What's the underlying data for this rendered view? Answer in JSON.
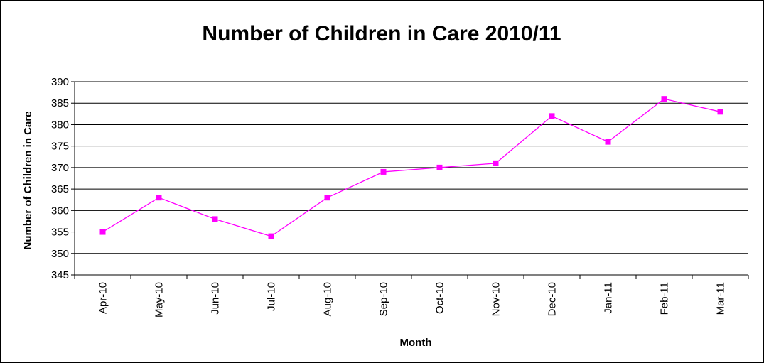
{
  "chart_data": {
    "type": "line",
    "title": "Number of Children in Care 2010/11",
    "xlabel": "Month",
    "ylabel": "Number of Children in Care",
    "categories": [
      "Apr-10",
      "May-10",
      "Jun-10",
      "Jul-10",
      "Aug-10",
      "Sep-10",
      "Oct-10",
      "Nov-10",
      "Dec-10",
      "Jan-11",
      "Feb-11",
      "Mar-11"
    ],
    "series": [
      {
        "values": [
          355,
          363,
          358,
          354,
          363,
          369,
          370,
          371,
          382,
          376,
          386,
          383
        ],
        "color": "#ff00ff"
      }
    ],
    "ylim": [
      345,
      390
    ],
    "yticks": [
      345,
      350,
      355,
      360,
      365,
      370,
      375,
      380,
      385,
      390
    ],
    "grid": true,
    "legend": "none",
    "marker": "square"
  }
}
